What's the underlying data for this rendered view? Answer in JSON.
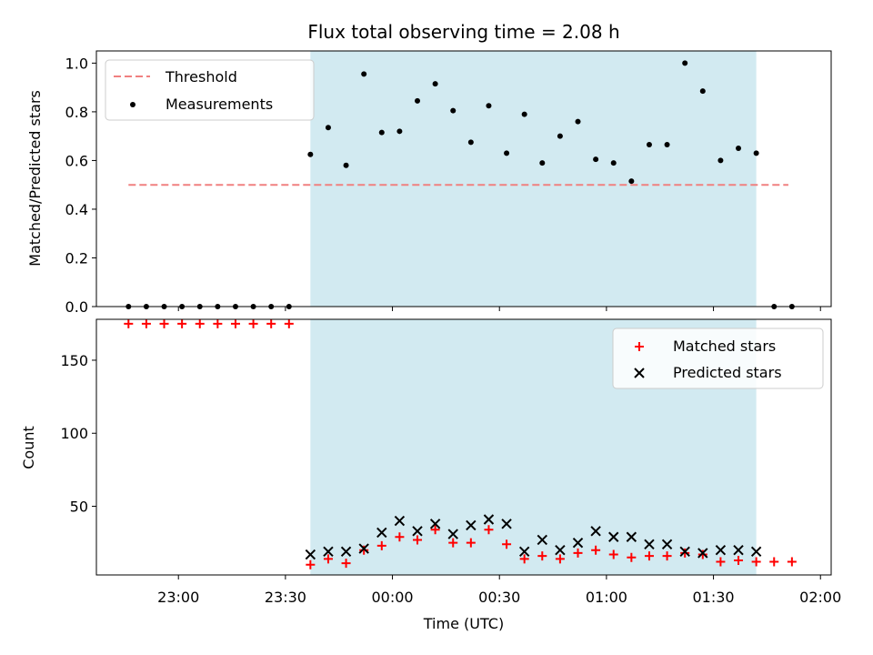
{
  "chart_data": {
    "type": "scatter",
    "title": "Flux total observing time = 2.08 h",
    "xlabel": "Time (UTC)",
    "xlim": [
      "22:37",
      "02:03"
    ],
    "xticks": [
      "23:00",
      "23:30",
      "00:00",
      "00:30",
      "01:00",
      "01:30",
      "02:00"
    ],
    "shaded_region": {
      "start": "23:37",
      "end": "01:42",
      "color": "#add8e6"
    },
    "panels": [
      {
        "ylabel": "Matched/Predicted stars",
        "ylim": [
          0,
          1.05
        ],
        "yticks": [
          0.0,
          0.2,
          0.4,
          0.6,
          0.8,
          1.0
        ],
        "yticklabels": [
          "0.0",
          "0.2",
          "0.4",
          "0.6",
          "0.8",
          "1.0"
        ],
        "legend": {
          "position": "top-left",
          "entries": [
            "Threshold",
            "Measurements"
          ]
        },
        "threshold": {
          "name": "Threshold",
          "value": 0.5,
          "x": [
            "22:46",
            "01:51"
          ],
          "color": "#f08080"
        },
        "measurements": {
          "name": "Measurements",
          "color": "#000000",
          "x": [
            "22:46",
            "22:51",
            "22:56",
            "23:01",
            "23:06",
            "23:11",
            "23:16",
            "23:21",
            "23:26",
            "23:31",
            "23:37",
            "23:42",
            "23:47",
            "23:52",
            "23:57",
            "00:02",
            "00:07",
            "00:12",
            "00:17",
            "00:22",
            "00:27",
            "00:32",
            "00:37",
            "00:42",
            "00:47",
            "00:52",
            "00:57",
            "01:02",
            "01:07",
            "01:12",
            "01:17",
            "01:22",
            "01:27",
            "01:32",
            "01:37",
            "01:42",
            "01:47",
            "01:52"
          ],
          "y": [
            0,
            0,
            0,
            0,
            0,
            0,
            0,
            0,
            0,
            0,
            0.625,
            0.735,
            0.58,
            0.955,
            0.715,
            0.72,
            0.845,
            0.915,
            0.805,
            0.675,
            0.825,
            0.63,
            0.79,
            0.59,
            0.7,
            0.76,
            0.605,
            0.59,
            0.515,
            0.665,
            0.665,
            1.0,
            0.885,
            0.6,
            0.65,
            0.63,
            0,
            0
          ]
        }
      },
      {
        "ylabel": "Count",
        "ylim": [
          3,
          178
        ],
        "yticks": [
          50,
          100,
          150
        ],
        "yticklabels": [
          "50",
          "100",
          "150"
        ],
        "legend": {
          "position": "top-right",
          "entries": [
            "Matched stars",
            "Predicted stars"
          ]
        },
        "series": [
          {
            "name": "Matched stars",
            "marker": "+",
            "color": "#ff0000",
            "x": [
              "22:46",
              "22:51",
              "22:56",
              "23:01",
              "23:06",
              "23:11",
              "23:16",
              "23:21",
              "23:26",
              "23:31",
              "23:37",
              "23:42",
              "23:47",
              "23:52",
              "23:57",
              "00:02",
              "00:07",
              "00:12",
              "00:17",
              "00:22",
              "00:27",
              "00:32",
              "00:37",
              "00:42",
              "00:47",
              "00:52",
              "00:57",
              "01:02",
              "01:07",
              "01:12",
              "01:17",
              "01:22",
              "01:27",
              "01:32",
              "01:37",
              "01:42",
              "01:47",
              "01:52"
            ],
            "y": [
              175,
              175,
              175,
              175,
              175,
              175,
              175,
              175,
              175,
              175,
              10,
              14,
              11,
              20,
              23,
              29,
              27,
              34,
              25,
              25,
              34,
              24,
              14,
              16,
              14,
              18,
              20,
              17,
              15,
              16,
              16,
              18,
              17,
              12,
              13,
              12,
              12,
              12
            ]
          },
          {
            "name": "Predicted stars",
            "marker": "x",
            "color": "#000000",
            "x": [
              "23:37",
              "23:42",
              "23:47",
              "23:52",
              "23:57",
              "00:02",
              "00:07",
              "00:12",
              "00:17",
              "00:22",
              "00:27",
              "00:32",
              "00:37",
              "00:42",
              "00:47",
              "00:52",
              "00:57",
              "01:02",
              "01:07",
              "01:12",
              "01:17",
              "01:22",
              "01:27",
              "01:32",
              "01:37",
              "01:42"
            ],
            "y": [
              17,
              19,
              19,
              21,
              32,
              40,
              33,
              38,
              31,
              37,
              41,
              38,
              19,
              27,
              20,
              25,
              33,
              29,
              29,
              24,
              24,
              19,
              18,
              20,
              20,
              19
            ]
          }
        ]
      }
    ]
  }
}
